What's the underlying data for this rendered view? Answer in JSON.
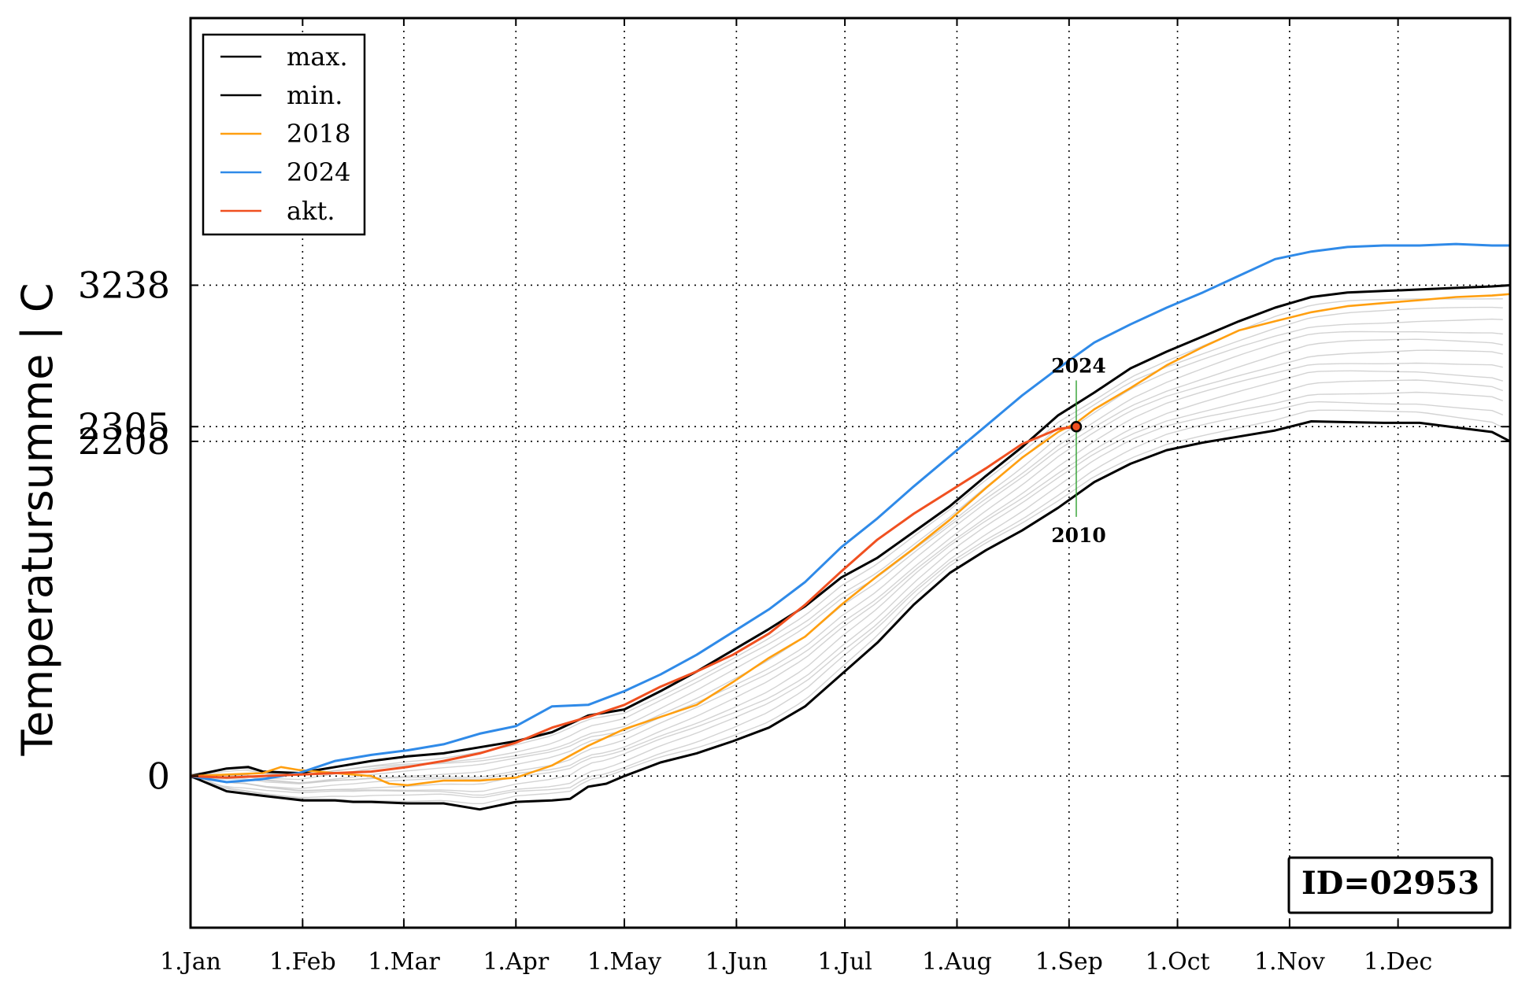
{
  "chart_data": {
    "type": "line",
    "title": "",
    "xlabel": "",
    "ylabel": "Temperatursumme | C",
    "x_ticks": [
      "1.Jan",
      "1.Feb",
      "1.Mar",
      "1.Apr",
      "1.May",
      "1.Jun",
      "1.Jul",
      "1.Aug",
      "1.Sep",
      "1.Oct",
      "1.Nov",
      "1.Dec"
    ],
    "x_tick_days": [
      0,
      31,
      59,
      90,
      120,
      151,
      181,
      212,
      243,
      273,
      304,
      334
    ],
    "xlim": [
      0,
      365
    ],
    "y_ticks": [
      0,
      2208,
      2305,
      3238
    ],
    "y_tick_labels": [
      "0",
      "2208",
      "2305",
      "3238"
    ],
    "ylim": [
      -1000,
      5000
    ],
    "grid": true,
    "legend_position": "upper-left",
    "series": [
      {
        "name": "max.",
        "color": "#000000",
        "x": [
          0,
          10,
          16,
          20,
          30,
          40,
          50,
          60,
          70,
          80,
          90,
          100,
          110,
          120,
          130,
          140,
          150,
          160,
          170,
          180,
          190,
          200,
          210,
          220,
          230,
          240,
          250,
          260,
          270,
          280,
          290,
          300,
          310,
          320,
          330,
          340,
          350,
          360,
          365
        ],
        "y": [
          0,
          50,
          60,
          30,
          20,
          60,
          100,
          130,
          150,
          190,
          230,
          290,
          400,
          440,
          560,
          690,
          830,
          970,
          1120,
          1310,
          1440,
          1610,
          1780,
          1980,
          2170,
          2380,
          2530,
          2690,
          2800,
          2900,
          3000,
          3090,
          3160,
          3190,
          3200,
          3210,
          3220,
          3230,
          3238
        ]
      },
      {
        "name": "min.",
        "color": "#000000",
        "x": [
          0,
          10,
          20,
          31,
          40,
          45,
          50,
          60,
          70,
          80,
          90,
          100,
          105,
          110,
          115,
          120,
          130,
          140,
          150,
          160,
          170,
          180,
          190,
          200,
          210,
          220,
          230,
          240,
          250,
          260,
          270,
          280,
          290,
          300,
          310,
          320,
          330,
          340,
          350,
          360,
          365
        ],
        "y": [
          0,
          -100,
          -130,
          -160,
          -160,
          -170,
          -170,
          -180,
          -180,
          -220,
          -170,
          -160,
          -150,
          -70,
          -50,
          0,
          90,
          150,
          230,
          320,
          460,
          670,
          880,
          1130,
          1340,
          1490,
          1620,
          1770,
          1940,
          2060,
          2150,
          2200,
          2240,
          2280,
          2340,
          2335,
          2330,
          2330,
          2300,
          2270,
          2208
        ]
      },
      {
        "name": "2018",
        "color": "#ff9f10",
        "x": [
          0,
          10,
          20,
          25,
          30,
          40,
          50,
          55,
          60,
          70,
          80,
          90,
          100,
          110,
          120,
          130,
          140,
          150,
          160,
          170,
          180,
          190,
          200,
          210,
          220,
          230,
          240,
          245,
          250,
          260,
          270,
          280,
          290,
          300,
          310,
          320,
          330,
          340,
          350,
          360,
          365
        ],
        "y": [
          0,
          10,
          20,
          60,
          40,
          20,
          0,
          -50,
          -60,
          -30,
          -30,
          -10,
          70,
          200,
          310,
          390,
          470,
          620,
          780,
          920,
          1130,
          1320,
          1500,
          1690,
          1900,
          2100,
          2270,
          2330,
          2420,
          2560,
          2710,
          2830,
          2940,
          3000,
          3060,
          3100,
          3120,
          3140,
          3160,
          3170,
          3180
        ]
      },
      {
        "name": "2024",
        "color": "#2f8ae8",
        "x": [
          0,
          10,
          20,
          30,
          40,
          50,
          60,
          70,
          80,
          90,
          100,
          110,
          120,
          130,
          140,
          150,
          160,
          170,
          180,
          190,
          200,
          210,
          220,
          230,
          240,
          250,
          260,
          270,
          280,
          290,
          300,
          310,
          320,
          330,
          340,
          350,
          360,
          365
        ],
        "y": [
          0,
          -40,
          -20,
          20,
          100,
          140,
          170,
          210,
          280,
          330,
          460,
          470,
          560,
          670,
          800,
          950,
          1100,
          1280,
          1510,
          1700,
          1910,
          2110,
          2310,
          2510,
          2690,
          2860,
          2980,
          3090,
          3190,
          3300,
          3410,
          3460,
          3490,
          3500,
          3500,
          3510,
          3500,
          3500
        ]
      },
      {
        "name": "akt.",
        "color": "#f05020",
        "x": [
          0,
          10,
          20,
          30,
          40,
          50,
          60,
          70,
          80,
          90,
          100,
          110,
          120,
          130,
          140,
          150,
          160,
          170,
          180,
          190,
          200,
          210,
          220,
          230,
          240,
          245
        ],
        "y": [
          0,
          -10,
          0,
          10,
          20,
          30,
          60,
          100,
          150,
          220,
          320,
          390,
          470,
          590,
          690,
          800,
          940,
          1130,
          1350,
          1560,
          1730,
          1880,
          2030,
          2190,
          2290,
          2305
        ]
      }
    ],
    "annotations": [
      {
        "text": "2024",
        "x": 245,
        "y": 2610
      },
      {
        "text": "2010",
        "x": 245,
        "y": 1710
      },
      {
        "text": "ID=02953",
        "position": "lower-right"
      }
    ],
    "current_point": {
      "x": 245,
      "y": 2305
    }
  }
}
